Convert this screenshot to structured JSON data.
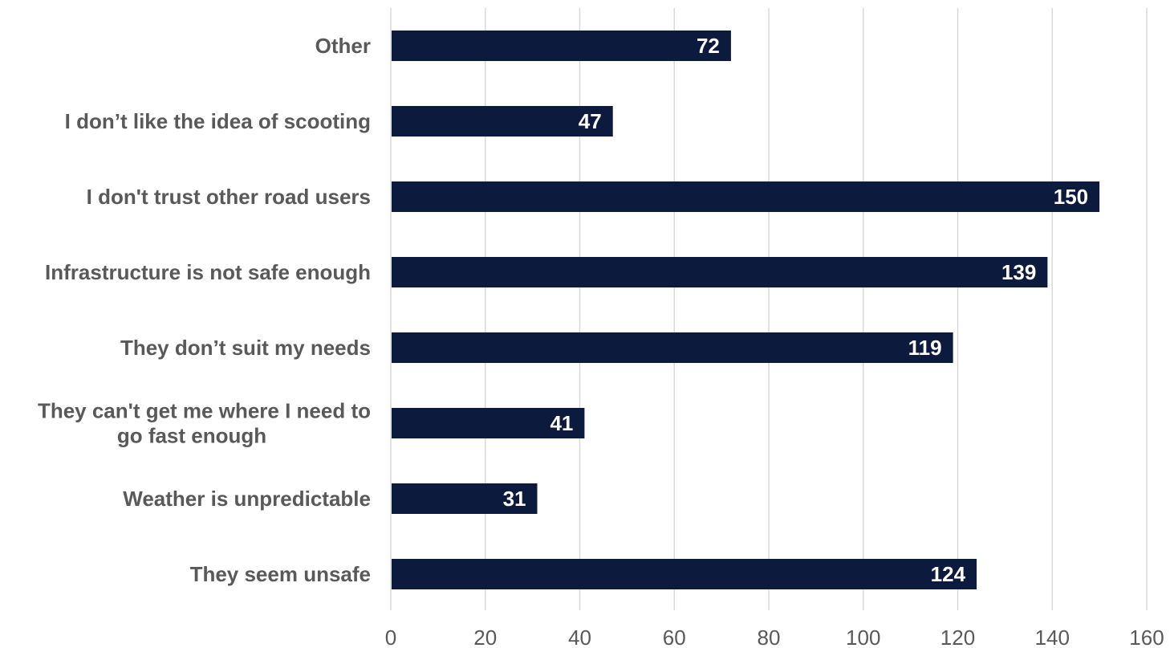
{
  "chart_data": {
    "type": "bar",
    "orientation": "horizontal",
    "categories": [
      "Other",
      "I don’t like the idea of scooting",
      "I don't trust other road users",
      "Infrastructure is not safe enough",
      "They don’t suit my needs",
      "They can't get me where I need to go fast enough",
      "Weather is unpredictable",
      "They seem unsafe"
    ],
    "values": [
      72,
      47,
      150,
      139,
      119,
      41,
      31,
      124
    ],
    "title": "",
    "xlabel": "",
    "ylabel": "",
    "xlim": [
      0,
      160
    ],
    "x_ticks": [
      0,
      20,
      40,
      60,
      80,
      100,
      120,
      140,
      160
    ],
    "grid": "vertical",
    "legend": "none",
    "data_labels": "inside-end",
    "colors": {
      "bar": "#0c1a3d",
      "gridline": "#d9d9d9",
      "label_text": "#595959",
      "data_label_text": "#ffffff"
    }
  }
}
